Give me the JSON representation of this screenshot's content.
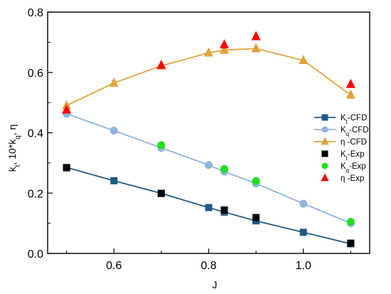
{
  "chart_data": {
    "type": "line",
    "xlabel": "J",
    "ylabel": "K",
    "ylabel_parts": [
      "k",
      "t",
      ", 10*k",
      "q",
      ", η"
    ],
    "xlim": [
      0.46,
      1.14
    ],
    "ylim": [
      0.0,
      0.8
    ],
    "xticks": [
      0.6,
      0.8,
      1.0
    ],
    "xtick_labels": [
      "0.6",
      "0.8",
      "1.0"
    ],
    "yticks": [
      0.0,
      0.2,
      0.4,
      0.6,
      0.8
    ],
    "ytick_labels": [
      "0.0",
      "0.2",
      "0.4",
      "0.6",
      "0.8"
    ],
    "grid": false,
    "legend_position": "right",
    "series": [
      {
        "name": "K-CFD",
        "name_base": "K",
        "name_sub": "t",
        "name_suffix": "-CFD",
        "style": "line-marker",
        "marker": "square",
        "color": "#1f5a85",
        "line_color": "#1f5a85",
        "x": [
          0.5,
          0.6,
          0.7,
          0.8,
          0.833,
          0.9,
          1.0,
          1.1
        ],
        "y": [
          0.285,
          0.241,
          0.199,
          0.152,
          0.137,
          0.108,
          0.07,
          0.032
        ]
      },
      {
        "name": "K-CFD",
        "name_base": "K",
        "name_sub": "q",
        "name_suffix": "-CFD",
        "style": "line-marker",
        "marker": "circle",
        "color": "#8fb4dc",
        "line_color": "#8fb4dc",
        "x": [
          0.5,
          0.6,
          0.7,
          0.8,
          0.833,
          0.9,
          1.0,
          1.1
        ],
        "y": [
          0.463,
          0.407,
          0.35,
          0.293,
          0.271,
          0.232,
          0.165,
          0.1
        ]
      },
      {
        "name": "η -CFD",
        "name_base": "η",
        "name_sub": "",
        "name_suffix": " -CFD",
        "style": "line-marker",
        "marker": "triangle",
        "color": "#e0a43a",
        "line_color": "#e0a43a",
        "x": [
          0.5,
          0.6,
          0.7,
          0.8,
          0.833,
          0.9,
          1.0,
          1.1
        ],
        "y": [
          0.49,
          0.565,
          0.622,
          0.665,
          0.674,
          0.679,
          0.64,
          0.525
        ]
      },
      {
        "name": "K-Exp",
        "name_base": "K",
        "name_sub": "t",
        "name_suffix": "-Exp",
        "style": "marker",
        "marker": "square",
        "color": "#000000",
        "x": [
          0.5,
          0.7,
          0.833,
          0.9,
          1.1
        ],
        "y": [
          0.284,
          0.199,
          0.144,
          0.119,
          0.034
        ]
      },
      {
        "name": "K-Exp",
        "name_base": "K",
        "name_sub": "q",
        "name_suffix": "-Exp",
        "style": "marker",
        "marker": "circle",
        "color": "#22e01e",
        "x": [
          0.7,
          0.833,
          0.9,
          1.1
        ],
        "y": [
          0.359,
          0.28,
          0.24,
          0.105
        ]
      },
      {
        "name": "η -Exp",
        "name_base": "η",
        "name_sub": "",
        "name_suffix": " -Exp",
        "style": "marker",
        "marker": "triangle",
        "color": "#ff0000",
        "x": [
          0.5,
          0.7,
          0.833,
          0.9,
          1.1
        ],
        "y": [
          0.476,
          0.624,
          0.692,
          0.719,
          0.561
        ]
      }
    ]
  }
}
